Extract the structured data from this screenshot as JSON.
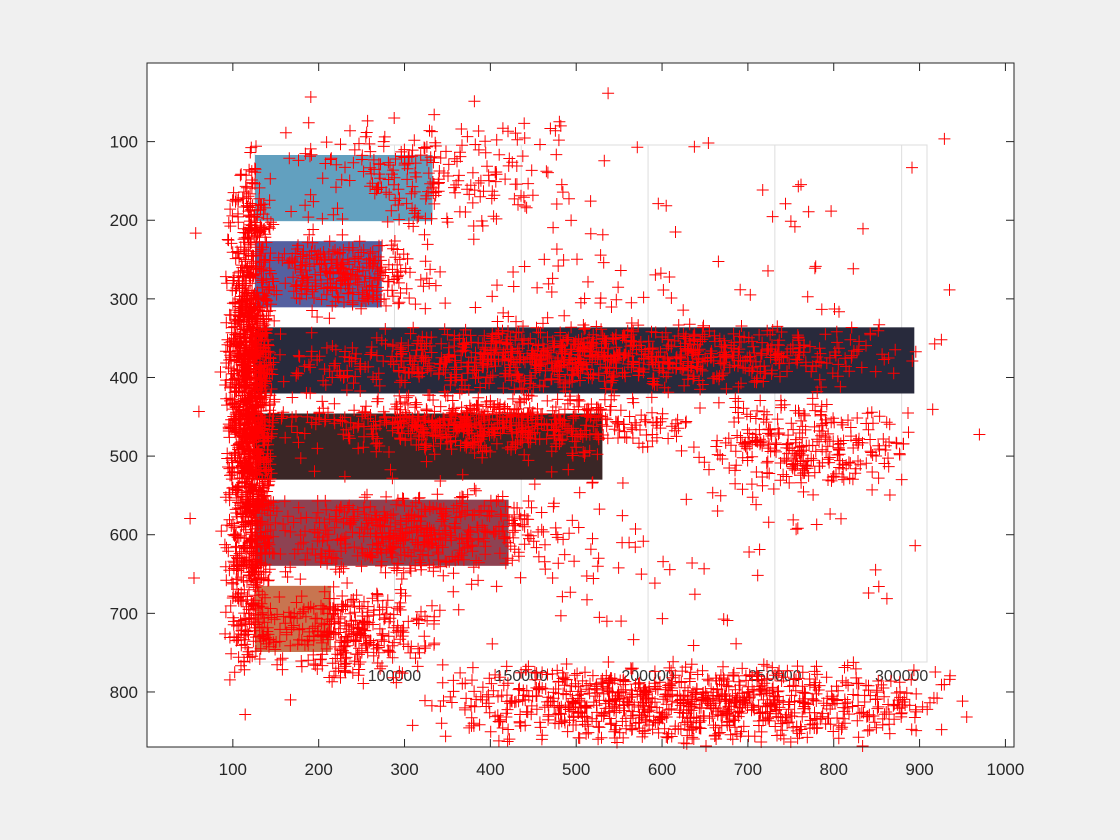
{
  "figure": {
    "background": "#f0f0f0",
    "axes_background": "#ffffff"
  },
  "chart_data": [
    {
      "type": "bar",
      "orientation": "horizontal",
      "role": "background image (rendered bar chart, partially visible)",
      "xticks": [
        "100000",
        "150000",
        "200000",
        "250000",
        "300000"
      ],
      "xlim": [
        45000,
        310000
      ],
      "bars": [
        {
          "value": 115000,
          "color": "#62a0bf"
        },
        {
          "value": 95000,
          "color": "#5560a0"
        },
        {
          "value": 305000,
          "color": "#282a3c"
        },
        {
          "value": 182000,
          "color": "#3a2626"
        },
        {
          "value": 145000,
          "color": "#8e4252"
        },
        {
          "value": 75000,
          "color": "#c87550"
        }
      ],
      "grid": true
    },
    {
      "type": "scatter",
      "marker": "+",
      "color": "#ff0000",
      "x_axis": {
        "lim": [
          0,
          1010
        ],
        "ticks": [
          "100",
          "200",
          "300",
          "400",
          "500",
          "600",
          "700",
          "800",
          "900",
          "1000"
        ]
      },
      "y_axis": {
        "lim": [
          0,
          870
        ],
        "reversed": true,
        "ticks": [
          "100",
          "200",
          "300",
          "400",
          "500",
          "600",
          "700",
          "800"
        ]
      },
      "clusters": [
        {
          "x": [
            90,
            150
          ],
          "y": [
            100,
            800
          ],
          "n": 1500
        },
        {
          "x": [
            120,
            350
          ],
          "y": [
            220,
            320
          ],
          "n": 260
        },
        {
          "x": [
            120,
            520
          ],
          "y": [
            60,
            220
          ],
          "n": 220
        },
        {
          "x": [
            140,
            900
          ],
          "y": [
            330,
            420
          ],
          "n": 800
        },
        {
          "x": [
            140,
            650
          ],
          "y": [
            420,
            500
          ],
          "n": 550
        },
        {
          "x": [
            130,
            500
          ],
          "y": [
            540,
            660
          ],
          "n": 420
        },
        {
          "x": [
            130,
            350
          ],
          "y": [
            660,
            790
          ],
          "n": 320
        },
        {
          "x": [
            300,
            970
          ],
          "y": [
            760,
            870
          ],
          "n": 900
        },
        {
          "x": [
            640,
            900
          ],
          "y": [
            420,
            560
          ],
          "n": 260
        },
        {
          "x": [
            20,
            1000
          ],
          "y": [
            0,
            870
          ],
          "n": 400
        }
      ]
    }
  ]
}
